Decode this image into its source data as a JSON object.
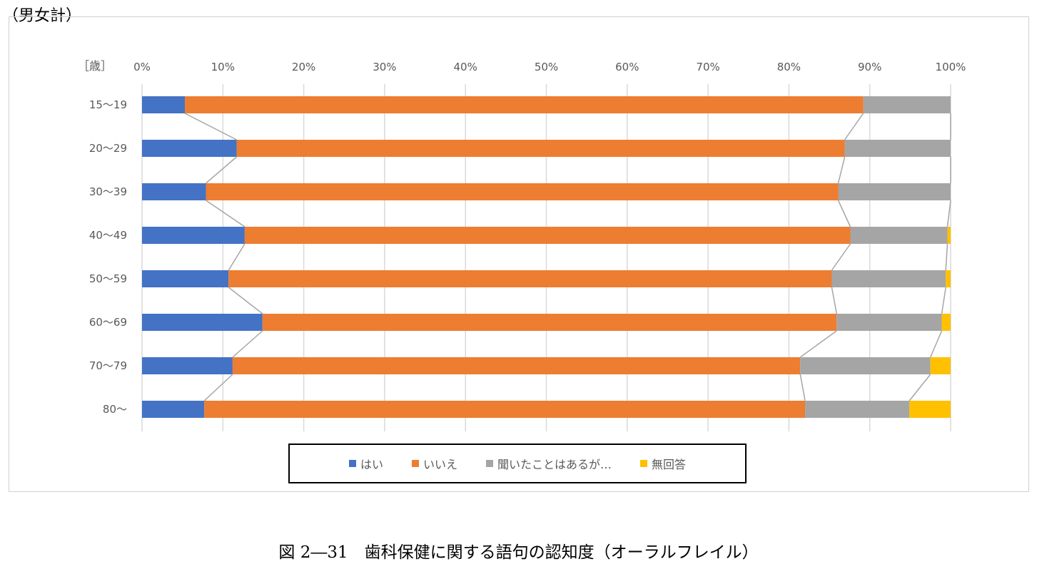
{
  "subtitle": "（男女計）",
  "caption": "図 2―31　歯科保健に関する語句の認知度（オーラルフレイル）",
  "chart_data": {
    "type": "bar",
    "orientation": "horizontal",
    "stacked": "percent",
    "unit_label": "［歳］",
    "categories": [
      "15～19",
      "20～29",
      "30～39",
      "40～49",
      "50～59",
      "60～69",
      "70～79",
      "80～"
    ],
    "xticks": [
      "0%",
      "10%",
      "20%",
      "30%",
      "40%",
      "50%",
      "60%",
      "70%",
      "80%",
      "90%",
      "100%"
    ],
    "xlim": [
      0,
      100
    ],
    "grid": true,
    "series_lines": true,
    "legend_position": "bottom",
    "series": [
      {
        "name": "はい",
        "color": "#4472C4",
        "values": [
          5.3,
          11.7,
          7.9,
          12.7,
          10.7,
          14.9,
          11.2,
          7.7
        ]
      },
      {
        "name": "いいえ",
        "color": "#ED7D31",
        "values": [
          83.9,
          75.2,
          78.2,
          74.9,
          74.6,
          71.0,
          70.2,
          74.3
        ]
      },
      {
        "name": "聞いたことはあるが…",
        "color": "#A5A5A5",
        "values": [
          10.8,
          13.1,
          13.9,
          12.0,
          14.1,
          13.0,
          16.1,
          12.9
        ]
      },
      {
        "name": "無回答",
        "color": "#FFC000",
        "values": [
          0,
          0,
          0,
          0.4,
          0.6,
          1.1,
          2.5,
          5.1
        ]
      }
    ]
  }
}
